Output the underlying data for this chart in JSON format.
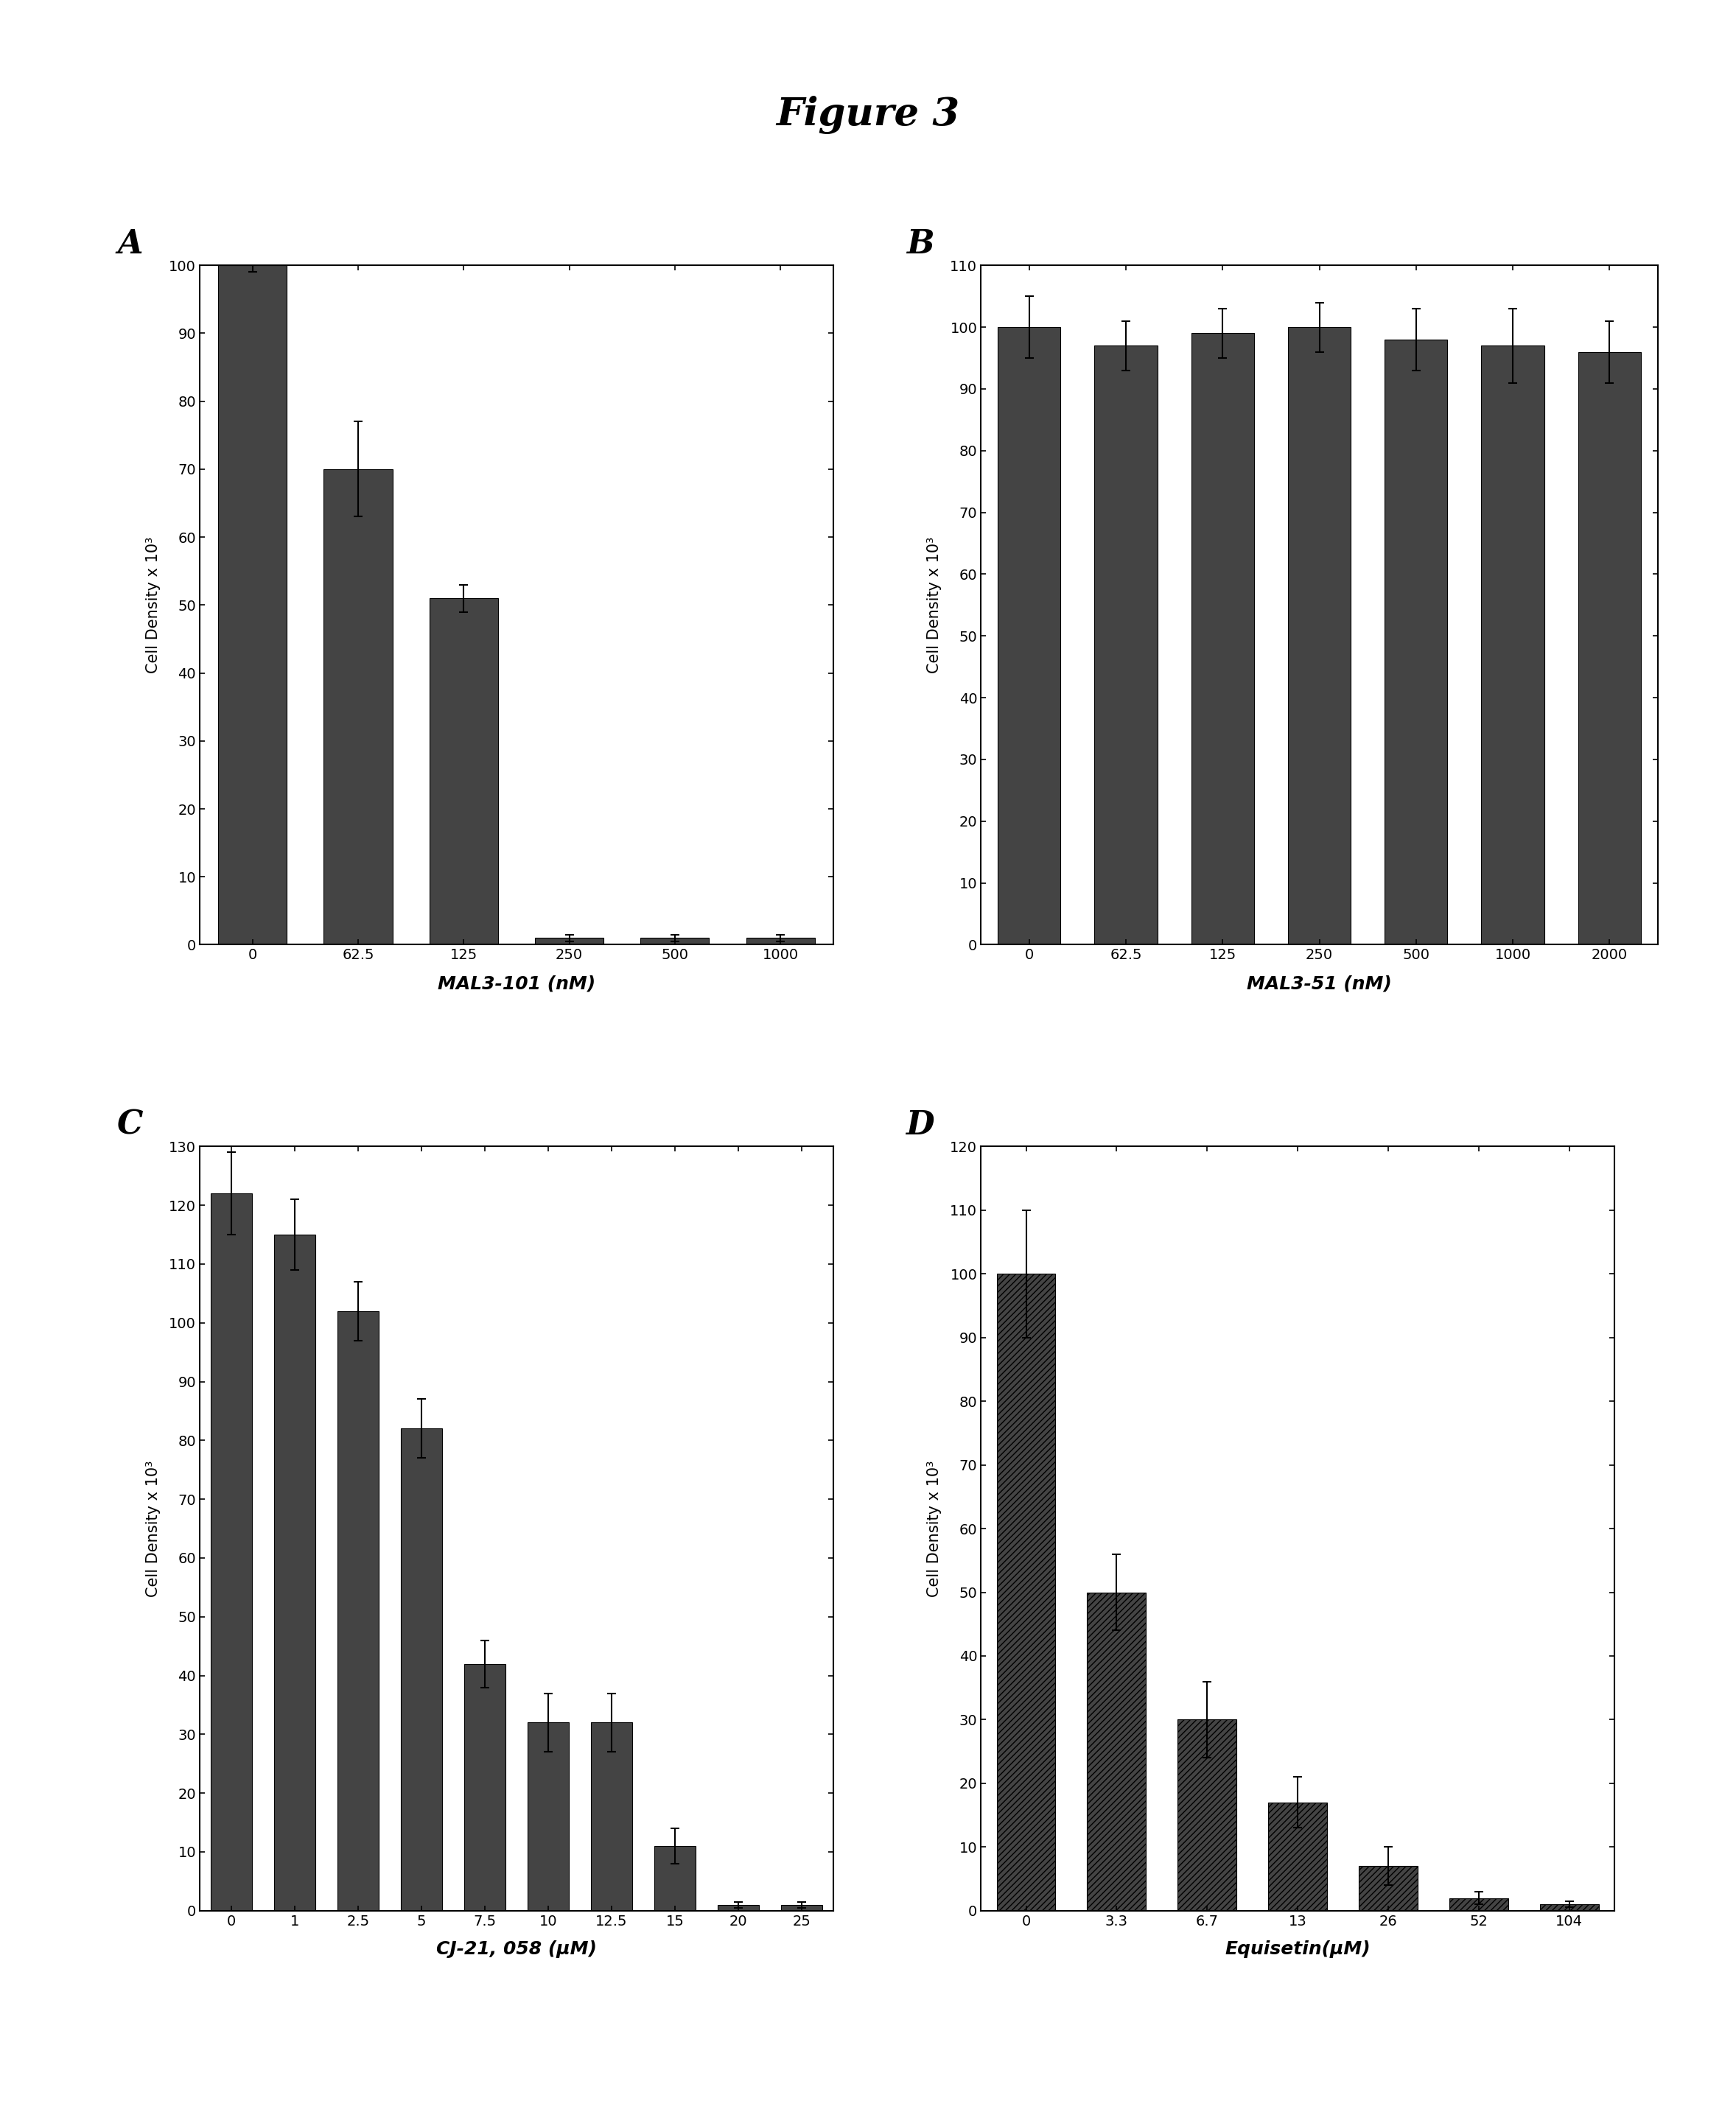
{
  "title": "Figure 3",
  "title_fontsize": 38,
  "title_fontweight": "bold",
  "background_color": "#ffffff",
  "panel_A": {
    "label": "A",
    "categories": [
      "0",
      "62.5",
      "125",
      "250",
      "500",
      "1000"
    ],
    "values": [
      100,
      70,
      51,
      1,
      1,
      1
    ],
    "errors": [
      1,
      7,
      2,
      0.5,
      0.5,
      0.5
    ],
    "xlabel": "MAL3-101 (nM)",
    "ylabel": "Cell Density x 10³",
    "ylim": [
      0,
      100
    ],
    "yticks": [
      0,
      10,
      20,
      30,
      40,
      50,
      60,
      70,
      80,
      90,
      100
    ],
    "bar_color": "#444444",
    "bar_width": 0.65,
    "hatch": ""
  },
  "panel_B": {
    "label": "B",
    "categories": [
      "0",
      "62.5",
      "125",
      "250",
      "500",
      "1000",
      "2000"
    ],
    "values": [
      100,
      97,
      99,
      100,
      98,
      97,
      96
    ],
    "errors": [
      5,
      4,
      4,
      4,
      5,
      6,
      5
    ],
    "xlabel": "MAL3-51 (nM)",
    "ylabel": "Cell Density x 10³",
    "ylim": [
      0,
      110
    ],
    "yticks": [
      0,
      10,
      20,
      30,
      40,
      50,
      60,
      70,
      80,
      90,
      100,
      110
    ],
    "bar_color": "#444444",
    "bar_width": 0.65,
    "hatch": ""
  },
  "panel_C": {
    "label": "C",
    "categories": [
      "0",
      "1",
      "2.5",
      "5",
      "7.5",
      "10",
      "12.5",
      "15",
      "20",
      "25"
    ],
    "values": [
      122,
      115,
      102,
      82,
      42,
      32,
      32,
      11,
      1,
      1
    ],
    "errors": [
      7,
      6,
      5,
      5,
      4,
      5,
      5,
      3,
      0.5,
      0.5
    ],
    "xlabel": "CJ-21, 058 (μM)",
    "ylabel": "Cell Density x 10³",
    "ylim": [
      0,
      130
    ],
    "yticks": [
      0,
      10,
      20,
      30,
      40,
      50,
      60,
      70,
      80,
      90,
      100,
      110,
      120,
      130
    ],
    "bar_color": "#444444",
    "bar_width": 0.65,
    "hatch": ""
  },
  "panel_D": {
    "label": "D",
    "categories": [
      "0",
      "3.3",
      "6.7",
      "13",
      "26",
      "52",
      "104"
    ],
    "values": [
      100,
      50,
      30,
      17,
      7,
      2,
      1
    ],
    "errors": [
      10,
      6,
      6,
      4,
      3,
      1,
      0.5
    ],
    "xlabel": "Equisetin(μM)",
    "ylabel": "Cell Density x 10³",
    "ylim": [
      0,
      120
    ],
    "yticks": [
      0,
      10,
      20,
      30,
      40,
      50,
      60,
      70,
      80,
      90,
      100,
      110,
      120
    ],
    "bar_color": "#444444",
    "bar_width": 0.65,
    "hatch": "////"
  }
}
